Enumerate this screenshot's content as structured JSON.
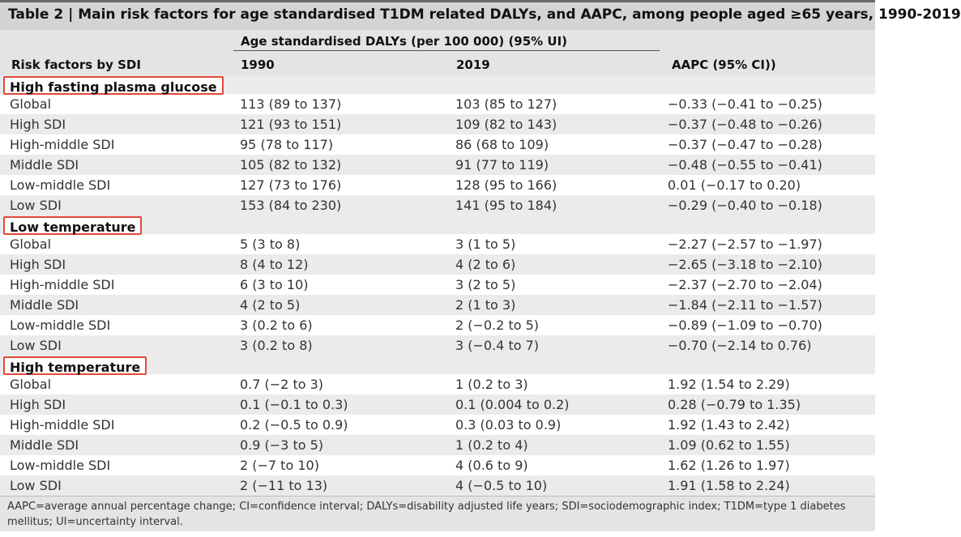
{
  "title": "Table 2 | Main risk factors for age standardised T1DM related DALYs, and AAPC, among people aged ≥65 years, 1990-2019",
  "header": {
    "group_label": "Age standardised DALYs (per 100 000) (95% UI)",
    "risk_label": "Risk factors by SDI",
    "col_1990": "1990",
    "col_2019": "2019",
    "col_aapc": "AAPC (95% CI))"
  },
  "sections": [
    {
      "label": "High fasting plasma glucose",
      "rows": [
        [
          "Global",
          "113 (89 to 137)",
          "103 (85 to 127)",
          "−0.33 (−0.41 to −0.25)"
        ],
        [
          "High SDI",
          "121 (93 to 151)",
          "109 (82 to 143)",
          "−0.37 (−0.48 to −0.26)"
        ],
        [
          "High-middle SDI",
          "95 (78 to 117)",
          "86 (68 to 109)",
          "−0.37 (−0.47 to −0.28)"
        ],
        [
          "Middle SDI",
          "105 (82 to 132)",
          "91 (77 to 119)",
          "−0.48 (−0.55 to −0.41)"
        ],
        [
          "Low-middle SDI",
          "127 (73 to 176)",
          "128 (95 to 166)",
          "0.01 (−0.17 to 0.20)"
        ],
        [
          "Low SDI",
          "153 (84 to 230)",
          "141 (95 to 184)",
          "−0.29 (−0.40 to −0.18)"
        ]
      ]
    },
    {
      "label": "Low temperature",
      "rows": [
        [
          "Global",
          "5 (3 to 8)",
          "3 (1 to 5)",
          "−2.27 (−2.57 to −1.97)"
        ],
        [
          "High SDI",
          "8 (4 to 12)",
          "4 (2 to 6)",
          "−2.65 (−3.18 to −2.10)"
        ],
        [
          "High-middle SDI",
          "6 (3 to 10)",
          "3 (2 to 5)",
          "−2.37 (−2.70 to −2.04)"
        ],
        [
          "Middle SDI",
          "4 (2 to 5)",
          "2 (1 to 3)",
          "−1.84 (−2.11 to −1.57)"
        ],
        [
          "Low-middle SDI",
          "3 (0.2 to 6)",
          "2 (−0.2 to 5)",
          "−0.89 (−1.09 to −0.70)"
        ],
        [
          "Low SDI",
          "3 (0.2 to 8)",
          "3 (−0.4 to 7)",
          "−0.70 (−2.14 to 0.76)"
        ]
      ]
    },
    {
      "label": "High temperature",
      "rows": [
        [
          "Global",
          "0.7 (−2 to 3)",
          "1 (0.2 to 3)",
          "1.92 (1.54 to 2.29)"
        ],
        [
          "High SDI",
          "0.1 (−0.1 to 0.3)",
          "0.1 (0.004 to 0.2)",
          "0.28 (−0.79 to 1.35)"
        ],
        [
          "High-middle SDI",
          "0.2 (−0.5 to 0.9)",
          "0.3 (0.03 to 0.9)",
          "1.92 (1.43 to 2.42)"
        ],
        [
          "Middle SDI",
          "0.9 (−3 to 5)",
          "1 (0.2 to 4)",
          "1.09 (0.62 to 1.55)"
        ],
        [
          "Low-middle SDI",
          "2 (−7 to 10)",
          "4 (0.6 to 9)",
          "1.62 (1.26 to 1.97)"
        ],
        [
          "Low SDI",
          "2 (−11 to 13)",
          "4 (−0.5 to 10)",
          "1.91 (1.58 to 2.24)"
        ]
      ]
    }
  ],
  "footnote": "AAPC=average annual percentage change; CI=confidence interval; DALYs=disability adjusted life years; SDI=sociodemographic index; T1DM=type 1 diabetes mellitus; UI=uncertainty interval.",
  "colors": {
    "highlight_box": "#e24a3b",
    "header_bg": "#d4d4d4",
    "stripe_bg": "#ebebeb"
  }
}
